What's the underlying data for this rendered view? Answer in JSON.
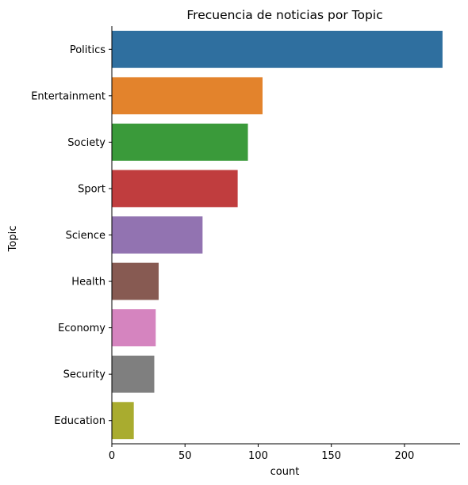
{
  "chart_data": {
    "type": "bar",
    "orientation": "horizontal",
    "title": "Frecuencia de noticias por Topic",
    "xlabel": "count",
    "ylabel": "Topic",
    "categories": [
      "Politics",
      "Entertainment",
      "Society",
      "Sport",
      "Science",
      "Health",
      "Economy",
      "Security",
      "Education"
    ],
    "values": [
      226,
      103,
      93,
      86,
      62,
      32,
      30,
      29,
      15
    ],
    "colors": [
      "#2f6f9f",
      "#e3832c",
      "#3a9a3a",
      "#c03d3e",
      "#9273b1",
      "#875a52",
      "#d584bf",
      "#7f7f7f",
      "#a9ac2f"
    ],
    "xlim": [
      0,
      238
    ],
    "xticks": [
      0,
      50,
      100,
      150,
      200
    ],
    "grid": false,
    "legend": "none"
  }
}
